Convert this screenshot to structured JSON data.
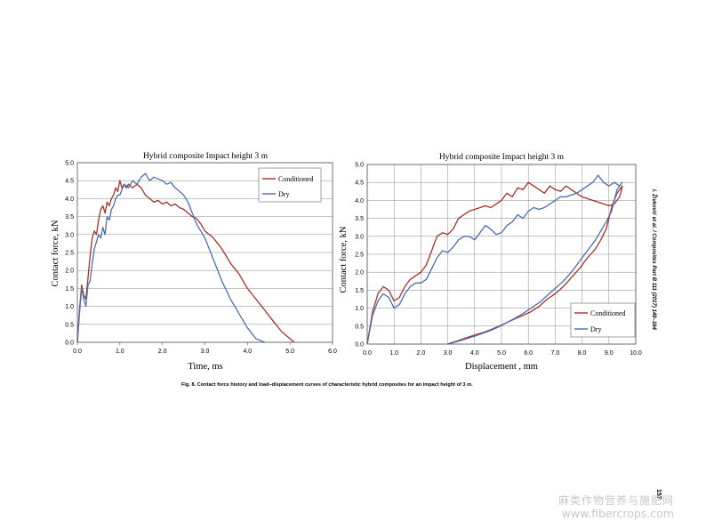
{
  "figure": {
    "caption": "Fig. 8.  Contact force history and load–displacement curves of characteristic hybrid composites for an impact  height of 3 m.",
    "running_head": "I. Živković et al. / Composites Part B 111 (2017) 148–164",
    "page_number": "157"
  },
  "watermark": {
    "line1": "麻类作物营养与施肥网",
    "line2": "www.fibercrops.com"
  },
  "colors": {
    "conditioned": "#a8302a",
    "dry": "#4a6fb0",
    "grid": "#8a8a8a",
    "frame": "#555555"
  },
  "chart_data": [
    {
      "type": "line",
      "title": "Hybrid composite Impact height 3 m",
      "xlabel": "Time, ms",
      "ylabel": "Contact force, kN",
      "xlim": [
        0,
        6
      ],
      "ylim": [
        0,
        5
      ],
      "xticks": [
        "0.0",
        "1.0",
        "2.0",
        "3.0",
        "4.0",
        "5.0",
        "6.0"
      ],
      "yticks": [
        "0.0",
        "0.5",
        "1.0",
        "1.5",
        "2.0",
        "2.5",
        "3.0",
        "3.5",
        "4.0",
        "4.5",
        "5.0"
      ],
      "grid": "horizontal",
      "legend": "top-right",
      "series": [
        {
          "name": "Conditioned",
          "x": [
            0,
            0.05,
            0.1,
            0.15,
            0.2,
            0.25,
            0.3,
            0.35,
            0.4,
            0.45,
            0.5,
            0.55,
            0.6,
            0.65,
            0.7,
            0.75,
            0.8,
            0.85,
            0.9,
            0.95,
            1.0,
            1.05,
            1.1,
            1.15,
            1.2,
            1.3,
            1.4,
            1.5,
            1.6,
            1.7,
            1.8,
            1.9,
            2.0,
            2.1,
            2.2,
            2.3,
            2.4,
            2.5,
            2.6,
            2.7,
            2.8,
            2.9,
            3.0,
            3.2,
            3.4,
            3.6,
            3.8,
            4.0,
            4.2,
            4.4,
            4.6,
            4.8,
            5.0,
            5.1
          ],
          "y": [
            0,
            0.9,
            1.6,
            1.3,
            1.2,
            1.8,
            2.4,
            2.9,
            3.1,
            3.0,
            3.4,
            3.7,
            3.8,
            3.6,
            3.9,
            3.8,
            4.0,
            4.1,
            4.3,
            4.2,
            4.5,
            4.3,
            4.4,
            4.3,
            4.4,
            4.3,
            4.4,
            4.3,
            4.1,
            4.0,
            3.9,
            3.95,
            3.85,
            3.9,
            3.8,
            3.85,
            3.75,
            3.7,
            3.6,
            3.5,
            3.45,
            3.3,
            3.1,
            2.9,
            2.6,
            2.2,
            1.9,
            1.5,
            1.2,
            0.9,
            0.6,
            0.3,
            0.1,
            0
          ]
        },
        {
          "name": "Dry",
          "x": [
            0,
            0.05,
            0.1,
            0.15,
            0.2,
            0.25,
            0.3,
            0.35,
            0.4,
            0.45,
            0.5,
            0.55,
            0.6,
            0.65,
            0.7,
            0.75,
            0.8,
            0.85,
            0.9,
            0.95,
            1.0,
            1.1,
            1.2,
            1.3,
            1.4,
            1.5,
            1.6,
            1.7,
            1.8,
            1.9,
            2.0,
            2.1,
            2.2,
            2.3,
            2.4,
            2.5,
            2.6,
            2.7,
            2.8,
            3.0,
            3.2,
            3.4,
            3.6,
            3.8,
            4.0,
            4.2,
            4.4
          ],
          "y": [
            0,
            0.8,
            1.5,
            1.2,
            1.0,
            1.6,
            1.7,
            2.2,
            2.6,
            2.8,
            3.0,
            2.9,
            3.2,
            3.0,
            3.5,
            3.4,
            3.7,
            3.8,
            4.0,
            4.1,
            4.1,
            4.4,
            4.3,
            4.5,
            4.4,
            4.6,
            4.7,
            4.5,
            4.6,
            4.55,
            4.5,
            4.4,
            4.45,
            4.3,
            4.2,
            4.1,
            3.9,
            3.6,
            3.3,
            2.9,
            2.3,
            1.7,
            1.2,
            0.8,
            0.4,
            0.1,
            0
          ]
        }
      ]
    },
    {
      "type": "line",
      "title": "Hybrid composite Impact height 3 m",
      "xlabel": "Displacement , mm",
      "ylabel": "Contact force, kN",
      "xlim": [
        0,
        10
      ],
      "ylim": [
        0,
        5
      ],
      "xticks": [
        "0.0",
        "1.0",
        "2.0",
        "3.0",
        "4.0",
        "5.0",
        "6.0",
        "7.0",
        "8.0",
        "9.0",
        "10.0"
      ],
      "yticks": [
        "0.0",
        "0.5",
        "1.0",
        "1.5",
        "2.0",
        "2.5",
        "3.0",
        "3.5",
        "4.0",
        "4.5",
        "5.0"
      ],
      "grid": "both",
      "legend": "bottom-right",
      "series": [
        {
          "name": "Conditioned",
          "x": [
            0,
            0.2,
            0.4,
            0.6,
            0.8,
            1.0,
            1.2,
            1.4,
            1.6,
            1.8,
            2.0,
            2.2,
            2.4,
            2.6,
            2.8,
            3.0,
            3.2,
            3.4,
            3.6,
            3.8,
            4.0,
            4.2,
            4.4,
            4.6,
            4.8,
            5.0,
            5.2,
            5.4,
            5.6,
            5.8,
            6.0,
            6.2,
            6.4,
            6.6,
            6.8,
            7.0,
            7.2,
            7.4,
            7.6,
            7.8,
            8.0,
            8.2,
            8.4,
            8.6,
            8.8,
            9.0,
            9.2,
            9.4,
            9.5,
            9.3,
            9.1,
            8.9,
            8.7,
            8.5,
            8.2,
            7.9,
            7.6,
            7.3,
            7.0,
            6.7,
            6.4,
            6.1,
            5.8,
            5.5,
            5.2,
            4.9,
            4.6,
            4.3,
            4.0,
            3.7,
            3.4,
            3.1,
            3.0
          ],
          "y": [
            0,
            0.9,
            1.4,
            1.6,
            1.5,
            1.2,
            1.3,
            1.6,
            1.8,
            1.9,
            2.0,
            2.2,
            2.6,
            3.0,
            3.1,
            3.05,
            3.2,
            3.5,
            3.6,
            3.7,
            3.75,
            3.8,
            3.85,
            3.8,
            3.9,
            4.0,
            4.2,
            4.1,
            4.35,
            4.3,
            4.5,
            4.4,
            4.3,
            4.2,
            4.4,
            4.3,
            4.25,
            4.4,
            4.3,
            4.2,
            4.1,
            4.05,
            4.0,
            3.95,
            3.9,
            3.85,
            3.9,
            4.1,
            4.4,
            4.2,
            3.8,
            3.2,
            2.9,
            2.65,
            2.4,
            2.1,
            1.85,
            1.6,
            1.4,
            1.25,
            1.05,
            0.9,
            0.8,
            0.7,
            0.6,
            0.5,
            0.4,
            0.32,
            0.25,
            0.18,
            0.1,
            0.03,
            0
          ]
        },
        {
          "name": "Dry",
          "x": [
            0,
            0.2,
            0.4,
            0.6,
            0.8,
            1.0,
            1.2,
            1.4,
            1.6,
            1.8,
            2.0,
            2.2,
            2.4,
            2.6,
            2.8,
            3.0,
            3.2,
            3.4,
            3.6,
            3.8,
            4.0,
            4.2,
            4.4,
            4.6,
            4.8,
            5.0,
            5.2,
            5.4,
            5.6,
            5.8,
            6.0,
            6.2,
            6.4,
            6.6,
            6.8,
            7.0,
            7.2,
            7.4,
            7.6,
            7.8,
            8.0,
            8.2,
            8.4,
            8.6,
            8.8,
            9.0,
            9.2,
            9.4,
            9.5,
            9.3,
            9.1,
            8.9,
            8.7,
            8.5,
            8.2,
            7.9,
            7.6,
            7.3,
            7.0,
            6.7,
            6.4,
            6.1,
            5.8,
            5.5,
            5.2,
            4.9,
            4.6,
            4.3,
            4.0,
            3.7,
            3.4,
            3.1,
            3.0
          ],
          "y": [
            0,
            0.8,
            1.2,
            1.4,
            1.3,
            1.0,
            1.1,
            1.4,
            1.6,
            1.7,
            1.7,
            1.8,
            2.1,
            2.4,
            2.6,
            2.55,
            2.7,
            2.9,
            3.0,
            3.0,
            2.9,
            3.1,
            3.3,
            3.2,
            3.05,
            3.1,
            3.3,
            3.4,
            3.6,
            3.5,
            3.7,
            3.8,
            3.75,
            3.8,
            3.9,
            4.0,
            4.1,
            4.1,
            4.15,
            4.2,
            4.3,
            4.4,
            4.5,
            4.7,
            4.5,
            4.4,
            4.5,
            4.4,
            4.5,
            4.3,
            3.7,
            3.4,
            3.15,
            2.9,
            2.6,
            2.3,
            2.0,
            1.75,
            1.55,
            1.35,
            1.15,
            1.0,
            0.85,
            0.72,
            0.6,
            0.48,
            0.38,
            0.3,
            0.22,
            0.15,
            0.08,
            0.02,
            0
          ]
        }
      ]
    }
  ]
}
